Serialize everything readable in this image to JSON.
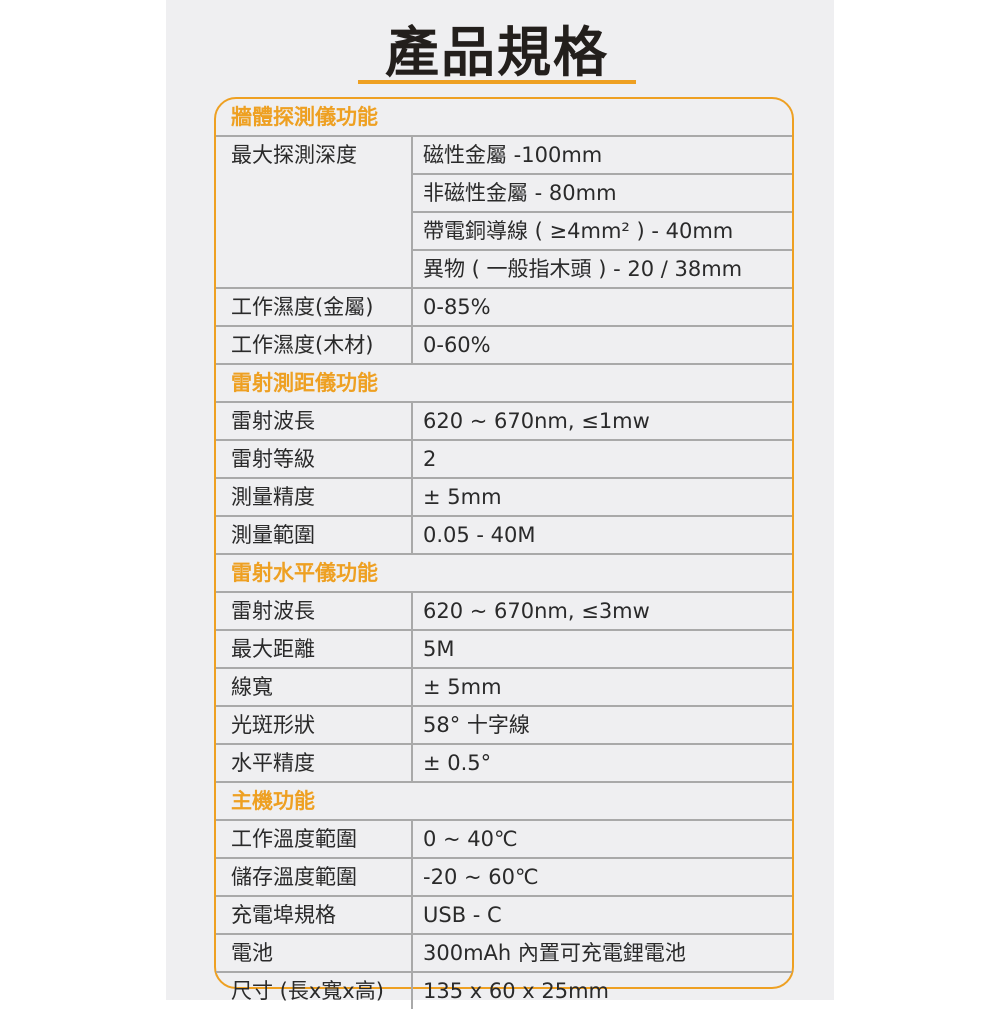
{
  "title": "產品規格",
  "accent_color": "#eea022",
  "sections": [
    {
      "heading": "牆體探測儀功能",
      "rows": [
        {
          "label": "最大探測深度",
          "values": [
            "磁性金屬 -100mm",
            "非磁性金屬 - 80mm",
            "帶電銅導線 ( ≥4mm² ) - 40mm",
            "異物 ( 一般指木頭 ) - 20 / 38mm"
          ]
        },
        {
          "label": "工作濕度(金屬)",
          "values": [
            "0-85%"
          ]
        },
        {
          "label": "工作濕度(木材)",
          "values": [
            "0-60%"
          ]
        }
      ]
    },
    {
      "heading": "雷射測距儀功能",
      "rows": [
        {
          "label": "雷射波長",
          "values": [
            "620 ~ 670nm, ≤1mw"
          ]
        },
        {
          "label": "雷射等級",
          "values": [
            "2"
          ]
        },
        {
          "label": "測量精度",
          "values": [
            "± 5mm"
          ]
        },
        {
          "label": "測量範圍",
          "values": [
            "0.05 - 40M"
          ]
        }
      ]
    },
    {
      "heading": "雷射水平儀功能",
      "rows": [
        {
          "label": "雷射波長",
          "values": [
            "620 ~ 670nm, ≤3mw"
          ]
        },
        {
          "label": "最大距離",
          "values": [
            "5M"
          ]
        },
        {
          "label": "線寬",
          "values": [
            "± 5mm"
          ]
        },
        {
          "label": "光斑形狀",
          "values": [
            "58° 十字線"
          ]
        },
        {
          "label": "水平精度",
          "values": [
            "± 0.5°"
          ]
        }
      ]
    },
    {
      "heading": "主機功能",
      "rows": [
        {
          "label": "工作溫度範圍",
          "values": [
            "0 ~ 40℃"
          ]
        },
        {
          "label": "儲存溫度範圍",
          "values": [
            "-20 ~ 60℃"
          ]
        },
        {
          "label": "充電埠規格",
          "values": [
            "USB - C"
          ]
        },
        {
          "label": "電池",
          "values": [
            "300mAh 內置可充電鋰電池"
          ]
        },
        {
          "label": "尺寸 (長x寬x高)",
          "values": [
            "135 x 60 x 25mm"
          ]
        }
      ]
    }
  ]
}
